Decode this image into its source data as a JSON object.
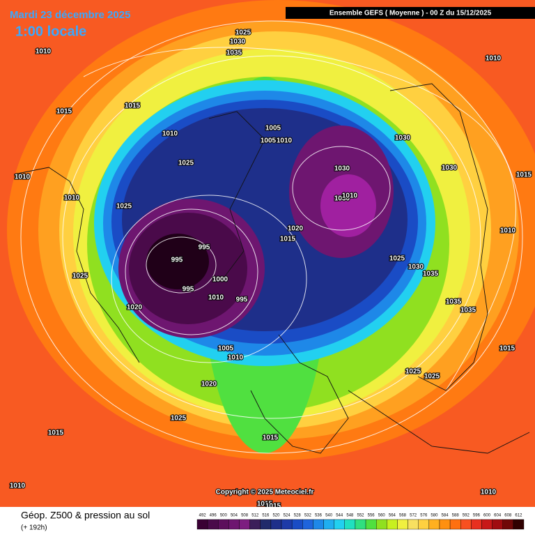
{
  "header": {
    "date": "Mardi 23 décembre 2025",
    "local_time": "1:00 locale",
    "model": "Ensemble GEFS  ( Moyenne )  -  00 Z du 15/12/2025"
  },
  "isobar_labels": [
    1025,
    1030,
    1035,
    1010,
    1010,
    1015,
    1015,
    1010,
    1005,
    1005,
    1010,
    1030,
    1025,
    1030,
    1030,
    1010,
    1015,
    1010,
    1030,
    1010,
    1025,
    1020,
    1010,
    1015,
    995,
    995,
    1025,
    1030,
    1035,
    1025,
    1000,
    995,
    1010,
    995,
    1020,
    1035,
    1035,
    1005,
    1010,
    1015,
    1025,
    1025,
    1020,
    1025,
    1015,
    1015,
    1010,
    1010,
    1015,
    1015
  ],
  "footer": {
    "copyright": "Copyright © 2025 Meteociel.fr",
    "title": "Géop. Z500 & pression au sol",
    "lead_time": "(+ 192h)"
  },
  "legend": {
    "ticks": [
      492,
      496,
      500,
      504,
      508,
      512,
      516,
      520,
      524,
      528,
      532,
      536,
      540,
      544,
      548,
      552,
      556,
      560,
      564,
      568,
      572,
      576,
      580,
      584,
      588,
      592,
      596,
      600,
      604,
      608,
      612
    ],
    "colors": [
      "#3a0034",
      "#4a0a4a",
      "#5c0f5c",
      "#6e1670",
      "#7d1d80",
      "#3b1f5a",
      "#202a6b",
      "#1e2f8a",
      "#1d3aa8",
      "#1a4cc5",
      "#1f64dc",
      "#1e88e8",
      "#20aef0",
      "#22d0f0",
      "#20e0c0",
      "#30e080",
      "#50e040",
      "#90e020",
      "#c8f020",
      "#f0f040",
      "#f8e060",
      "#ffd040",
      "#ffb020",
      "#ff9010",
      "#ff7010",
      "#f85020",
      "#e83020",
      "#c81818",
      "#a00c10",
      "#700808",
      "#300000"
    ]
  }
}
